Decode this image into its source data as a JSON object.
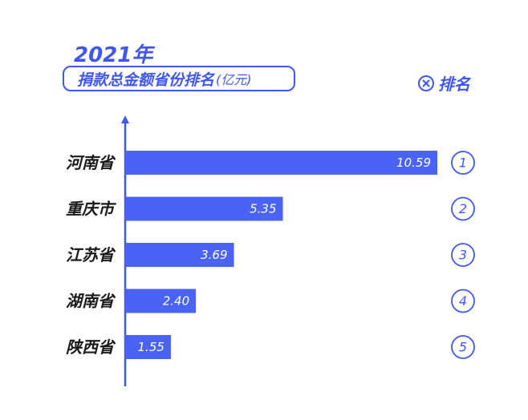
{
  "header": {
    "year": "2021年",
    "title": "捐款总金额省份排名",
    "unit": "(亿元)"
  },
  "legend": {
    "icon": "x-circle-icon",
    "label": "排名"
  },
  "colors": {
    "accent": "#3f57f0",
    "bar": "#4a63f5",
    "text": "#1a1a1a",
    "value_text": "#ffffff"
  },
  "chart_data": {
    "type": "bar",
    "orientation": "horizontal",
    "categories": [
      "河南省",
      "重庆市",
      "江苏省",
      "湖南省",
      "陕西省"
    ],
    "values": [
      10.59,
      5.35,
      3.69,
      2.4,
      1.55
    ],
    "value_labels": [
      "10.59",
      "5.35",
      "3.69",
      "2.40",
      "1.55"
    ],
    "ranks": [
      "1",
      "2",
      "3",
      "4",
      "5"
    ],
    "title": "捐款总金额省份排名",
    "xlabel": "",
    "ylabel": "",
    "xlim": [
      0,
      10.59
    ],
    "grid": false,
    "legend": "top-right"
  }
}
